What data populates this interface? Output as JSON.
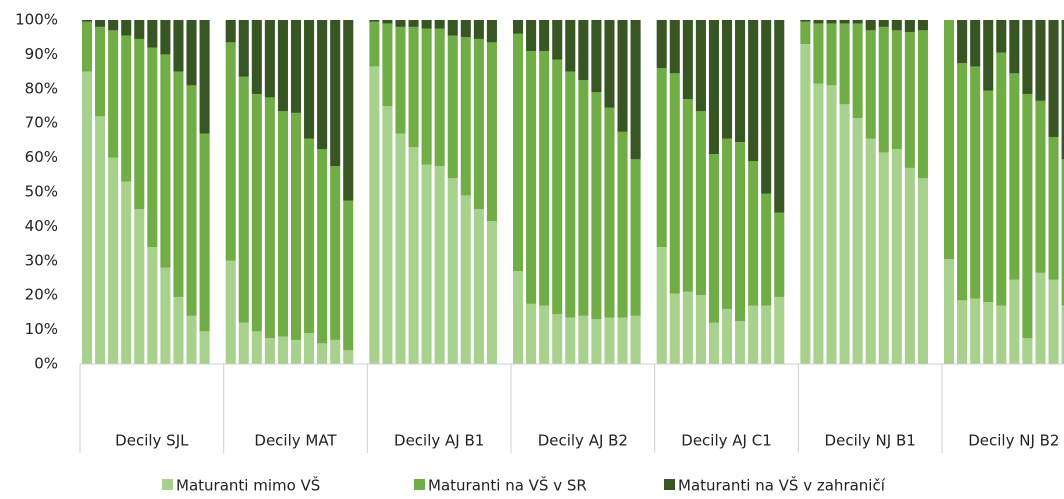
{
  "chart_data": {
    "type": "stacked_bar_100",
    "categories": [
      "Decily SJL",
      "Decily MAT",
      "Decily AJ B1",
      "Decily AJ B2",
      "Decily AJ C1",
      "Decily NJ B1",
      "Decily NJ B2"
    ],
    "ylim": [
      0,
      100
    ],
    "yticks": [
      {
        "value": 0,
        "label": "0%"
      },
      {
        "value": 10,
        "label": "10%"
      },
      {
        "value": 20,
        "label": "20%"
      },
      {
        "value": 30,
        "label": "30%"
      },
      {
        "value": 40,
        "label": "40%"
      },
      {
        "value": 50,
        "label": "50%"
      },
      {
        "value": 60,
        "label": "60%"
      },
      {
        "value": 70,
        "label": "70%"
      },
      {
        "value": 80,
        "label": "80%"
      },
      {
        "value": 90,
        "label": "90%"
      },
      {
        "value": 100,
        "label": "100%"
      }
    ],
    "legend": "bottom",
    "series": [
      {
        "name": "Maturanti mimo VŠ",
        "color": "#a9d18e",
        "values": [
          [
            85,
            72,
            60,
            53,
            45,
            34,
            28,
            19.5,
            14,
            9.5
          ],
          [
            30,
            12,
            9.5,
            7.5,
            8,
            7,
            9,
            6,
            7,
            4
          ],
          [
            86.5,
            75,
            67,
            63,
            58,
            57.5,
            54,
            49,
            45,
            41.5
          ],
          [
            27,
            17.5,
            17,
            14.5,
            13.5,
            14,
            13,
            13.5,
            13.5,
            14
          ],
          [
            34,
            20.5,
            21,
            20,
            12,
            16,
            12.5,
            17,
            17,
            19.5
          ],
          [
            93,
            81.5,
            81,
            75.5,
            71.5,
            65.5,
            61.5,
            62.5,
            57,
            54
          ],
          [
            30.5,
            18.5,
            19,
            18,
            17,
            24.5,
            7.5,
            26.5,
            24.5,
            17
          ]
        ]
      },
      {
        "name": "Maturanti na VŠ v SR",
        "color": "#70ad47",
        "values": [
          [
            14.5,
            26,
            37,
            42.5,
            49.5,
            58,
            62,
            65.5,
            67,
            57.5
          ],
          [
            63.5,
            71.5,
            69,
            70,
            65.5,
            66,
            56.5,
            56.5,
            50.5,
            43.5
          ],
          [
            13,
            24,
            31,
            35,
            39.5,
            40,
            41.5,
            46,
            49.5,
            52
          ],
          [
            69,
            73.5,
            74,
            74,
            71.5,
            68.5,
            66,
            61,
            54,
            45.5
          ],
          [
            52,
            64,
            56,
            53.5,
            49,
            49.5,
            52,
            42,
            32.5,
            24.5
          ],
          [
            6.5,
            17.5,
            18,
            23.5,
            27.5,
            31.5,
            36.5,
            34.5,
            39.5,
            43
          ],
          [
            69.5,
            69,
            67.5,
            61.5,
            73.5,
            60,
            71,
            50,
            41.5,
            42.5
          ]
        ]
      },
      {
        "name": "Maturanti na VŠ v zahraničí",
        "color": "#375623",
        "values": [
          [
            0.5,
            2,
            3,
            4.5,
            5.5,
            8,
            10,
            15,
            19,
            33
          ],
          [
            6.5,
            16.5,
            21.5,
            22.5,
            26.5,
            27,
            34.5,
            37.5,
            42.5,
            52.5
          ],
          [
            0.5,
            1,
            2,
            2,
            2.5,
            2.5,
            4.5,
            5,
            5.5,
            6.5
          ],
          [
            4,
            9,
            9,
            11.5,
            15,
            17.5,
            21,
            25.5,
            32.5,
            40.5
          ],
          [
            14,
            15.5,
            23,
            26.5,
            39,
            34.5,
            35.5,
            41,
            50.5,
            56
          ],
          [
            0.5,
            1,
            1,
            1,
            1,
            3,
            2,
            3,
            3.5,
            3
          ],
          [
            0,
            12.5,
            13.5,
            20.5,
            9.5,
            15.5,
            21.5,
            23.5,
            34,
            40.5
          ]
        ]
      }
    ]
  }
}
